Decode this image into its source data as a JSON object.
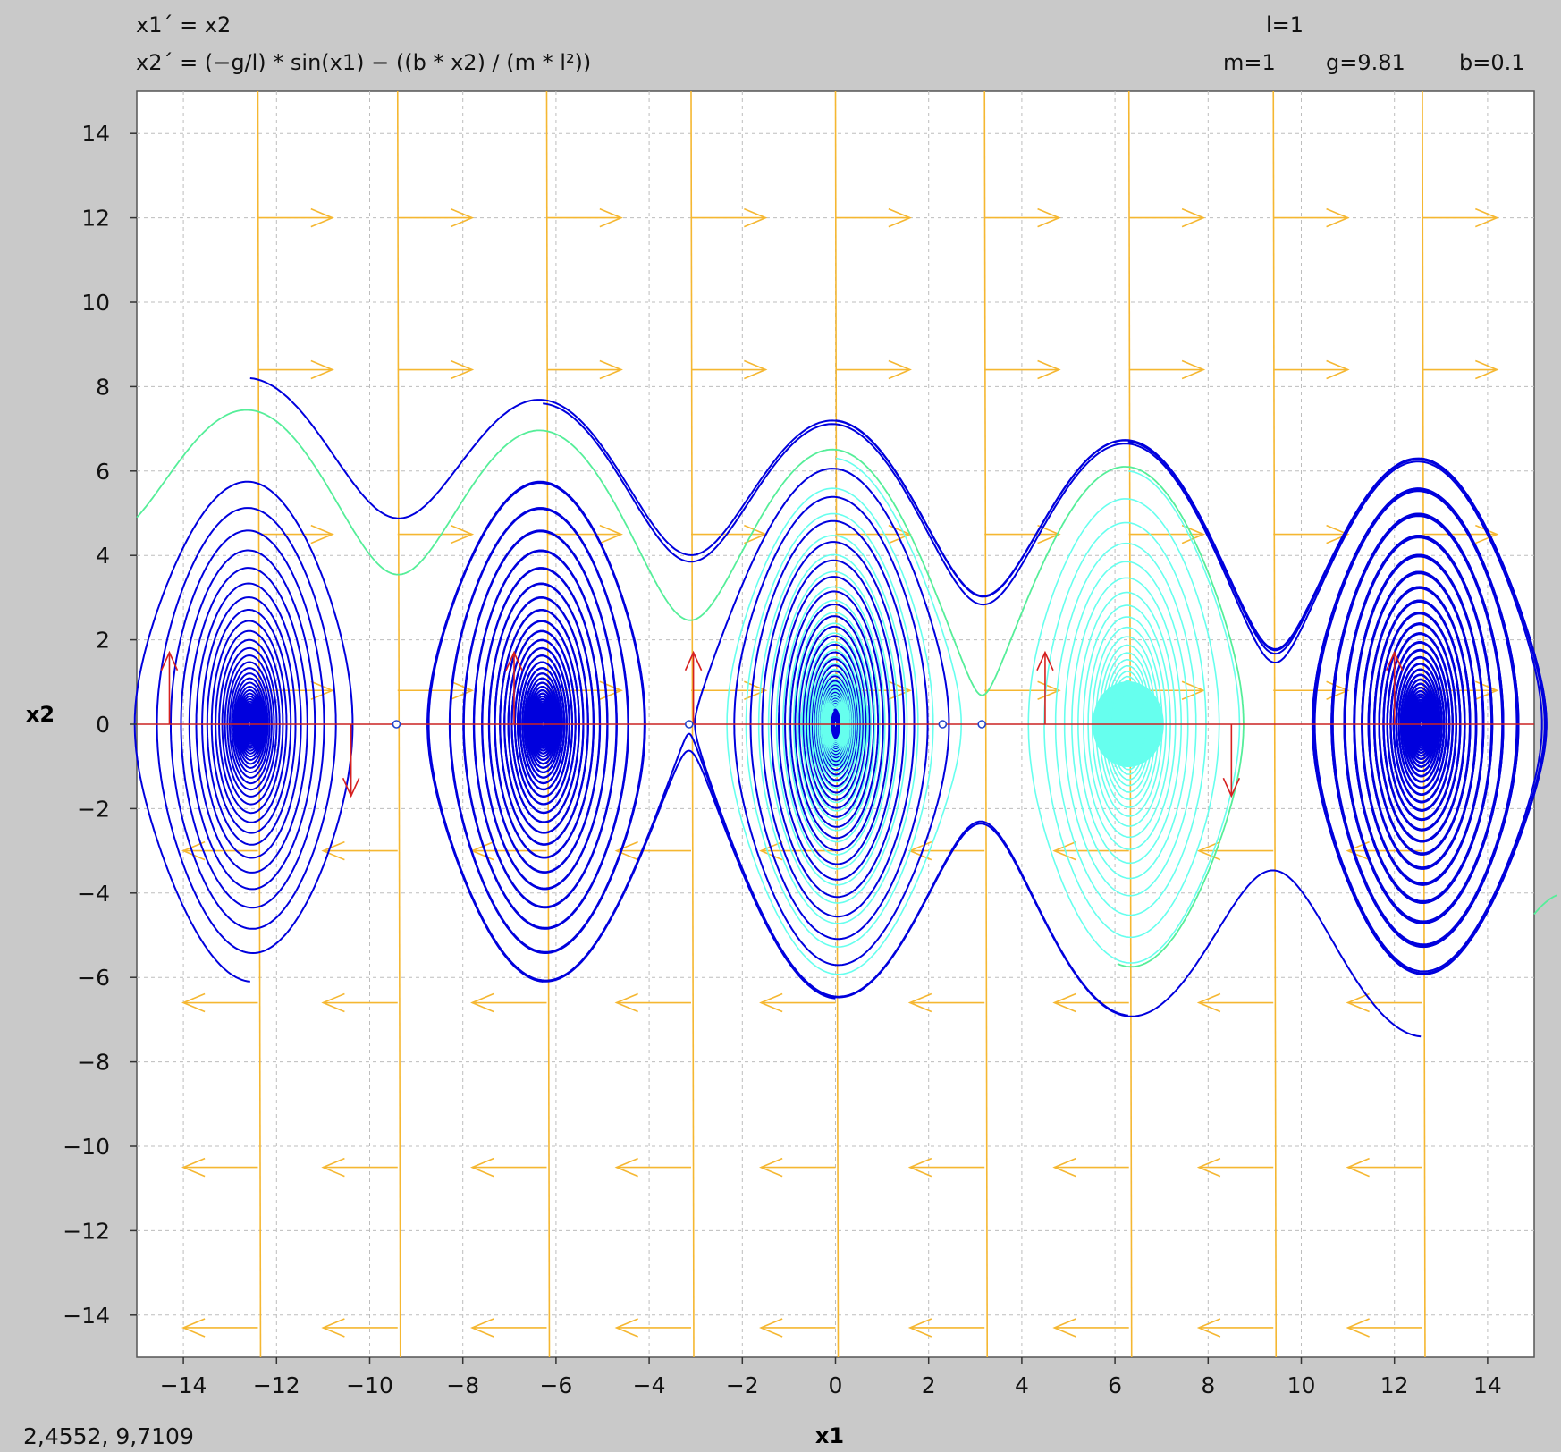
{
  "header": {
    "eq1": "x1´ = x2",
    "eq2": "x2´ = (−g/l) * sin(x1) − ((b * x2) / (m * l²))",
    "param_l": "l=1",
    "param_m": "m=1",
    "param_g": "g=9.81",
    "param_b": "b=0.1"
  },
  "status": {
    "coords": "2,4552,  9,7109"
  },
  "chart_data": {
    "type": "line",
    "title": "",
    "xlabel": "x1",
    "ylabel": "x2",
    "xlim": [
      -15,
      15
    ],
    "ylim": [
      -15,
      15
    ],
    "xticks": [
      -14,
      -12,
      -10,
      -8,
      -6,
      -4,
      -2,
      0,
      2,
      4,
      6,
      8,
      10,
      12,
      14
    ],
    "yticks": [
      14,
      12,
      10,
      8,
      6,
      4,
      2,
      0,
      -2,
      -4,
      -6,
      -8,
      -10,
      -12,
      -14
    ],
    "xtick_labels": [
      "−14",
      "−12",
      "−10",
      "−8",
      "−6",
      "−4",
      "−2",
      "0",
      "2",
      "4",
      "6",
      "8",
      "10",
      "12",
      "14"
    ],
    "ytick_labels": [
      "14",
      "12",
      "10",
      "8",
      "6",
      "4",
      "2",
      "0",
      "−2",
      "−4",
      "−6",
      "−8",
      "−10",
      "−12",
      "−14"
    ],
    "grid": true,
    "parameters": {
      "l": 1,
      "m": 1,
      "g": 9.81,
      "b": 0.1
    },
    "equilibria_x": [
      -12.566,
      -9.425,
      -6.283,
      -3.142,
      0,
      3.142,
      6.283,
      9.425,
      12.566
    ],
    "marked_points": [
      [
        -9.425,
        0
      ],
      [
        -3.142,
        0
      ],
      [
        2.3,
        0
      ],
      [
        3.142,
        0
      ]
    ],
    "nullcline_x1dot": {
      "x2": 0
    },
    "x1dot_nullclines_x": [
      -12.4,
      -9.4,
      -6.2,
      -3.1,
      0,
      3.2,
      6.3,
      9.4,
      12.6
    ],
    "field_arrow_rows_x2": [
      12,
      8.4,
      4.5,
      0.8,
      -3,
      -6.6,
      -10.5,
      -14.3
    ],
    "orbit_centers_x": [
      -12.566,
      -6.283,
      0,
      6.283,
      12.566
    ],
    "orbit_peaks": [
      {
        "center": -12.566,
        "top": 8.2,
        "bottom": -6.1
      },
      {
        "center": -6.283,
        "top": 7.6,
        "bottom": -6.1
      },
      {
        "center": 0,
        "top": 7.2,
        "bottom": -6.5
      },
      {
        "center": 6.283,
        "top": 6.7,
        "bottom": -6.9
      },
      {
        "center": 12.566,
        "top": 6.3,
        "bottom": -7.4
      }
    ],
    "series_colors": {
      "trajectories": "#0000dd",
      "separatrix": "#55ee99",
      "inner": "#66ffee",
      "fill": "#66ffee",
      "vector_field": "#f5b731",
      "x2_nullcline": "#cc2222",
      "vertical_arrows": "#d62020"
    }
  }
}
